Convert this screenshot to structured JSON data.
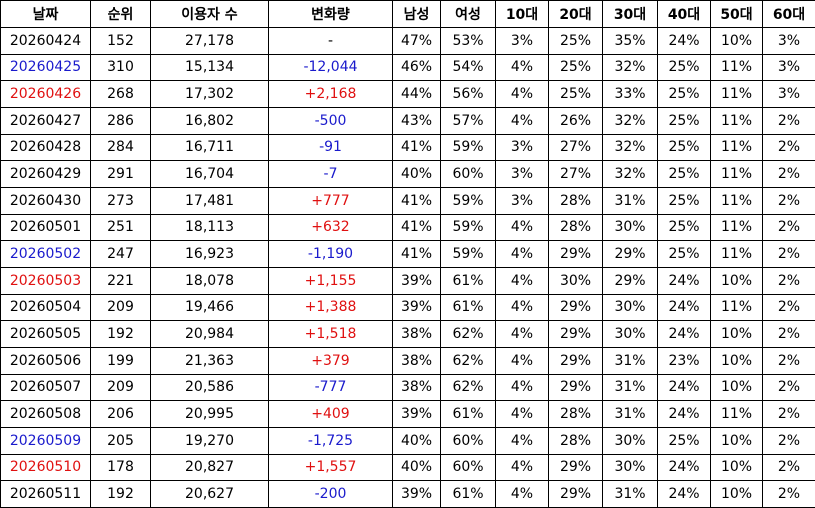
{
  "table": {
    "header": [
      "날짜",
      "순위",
      "이용자 수",
      "변화량",
      "남성",
      "여성",
      "10대",
      "20대",
      "30대",
      "40대",
      "50대",
      "60대"
    ],
    "rows": [
      [
        "20260424",
        "152",
        "27,178",
        "-",
        "47%",
        "53%",
        "3%",
        "25%",
        "35%",
        "24%",
        "10%",
        "3%"
      ],
      [
        "20260425",
        "310",
        "15,134",
        "-12,044",
        "46%",
        "54%",
        "4%",
        "25%",
        "32%",
        "25%",
        "11%",
        "3%"
      ],
      [
        "20260426",
        "268",
        "17,302",
        "+2,168",
        "44%",
        "56%",
        "4%",
        "25%",
        "33%",
        "25%",
        "11%",
        "3%"
      ],
      [
        "20260427",
        "286",
        "16,802",
        "-500",
        "43%",
        "57%",
        "4%",
        "26%",
        "32%",
        "25%",
        "11%",
        "2%"
      ],
      [
        "20260428",
        "284",
        "16,711",
        "-91",
        "41%",
        "59%",
        "3%",
        "27%",
        "32%",
        "25%",
        "11%",
        "2%"
      ],
      [
        "20260429",
        "291",
        "16,704",
        "-7",
        "40%",
        "60%",
        "3%",
        "27%",
        "32%",
        "25%",
        "11%",
        "2%"
      ],
      [
        "20260430",
        "273",
        "17,481",
        "+777",
        "41%",
        "59%",
        "3%",
        "28%",
        "31%",
        "25%",
        "11%",
        "2%"
      ],
      [
        "20260501",
        "251",
        "18,113",
        "+632",
        "41%",
        "59%",
        "4%",
        "28%",
        "30%",
        "25%",
        "11%",
        "2%"
      ],
      [
        "20260502",
        "247",
        "16,923",
        "-1,190",
        "41%",
        "59%",
        "4%",
        "29%",
        "29%",
        "25%",
        "11%",
        "2%"
      ],
      [
        "20260503",
        "221",
        "18,078",
        "+1,155",
        "39%",
        "61%",
        "4%",
        "30%",
        "29%",
        "24%",
        "10%",
        "2%"
      ],
      [
        "20260504",
        "209",
        "19,466",
        "+1,388",
        "39%",
        "61%",
        "4%",
        "29%",
        "30%",
        "24%",
        "11%",
        "2%"
      ],
      [
        "20260505",
        "192",
        "20,984",
        "+1,518",
        "38%",
        "62%",
        "4%",
        "29%",
        "30%",
        "24%",
        "10%",
        "2%"
      ],
      [
        "20260506",
        "199",
        "21,363",
        "+379",
        "38%",
        "62%",
        "4%",
        "29%",
        "31%",
        "23%",
        "10%",
        "2%"
      ],
      [
        "20260507",
        "209",
        "20,586",
        "-777",
        "38%",
        "62%",
        "4%",
        "29%",
        "31%",
        "24%",
        "10%",
        "2%"
      ],
      [
        "20260508",
        "206",
        "20,995",
        "+409",
        "39%",
        "61%",
        "4%",
        "28%",
        "31%",
        "24%",
        "11%",
        "2%"
      ],
      [
        "20260509",
        "205",
        "19,270",
        "-1,725",
        "40%",
        "60%",
        "4%",
        "28%",
        "30%",
        "25%",
        "10%",
        "2%"
      ],
      [
        "20260510",
        "178",
        "20,827",
        "+1,557",
        "40%",
        "60%",
        "4%",
        "29%",
        "30%",
        "24%",
        "10%",
        "2%"
      ],
      [
        "20260511",
        "192",
        "20,627",
        "-200",
        "39%",
        "61%",
        "4%",
        "29%",
        "31%",
        "24%",
        "10%",
        "2%"
      ]
    ],
    "date_colors": [
      "#000000",
      "#1a1acc",
      "#e01010",
      "#000000",
      "#000000",
      "#000000",
      "#000000",
      "#000000",
      "#1a1acc",
      "#e01010",
      "#000000",
      "#000000",
      "#000000",
      "#000000",
      "#000000",
      "#1a1acc",
      "#e01010",
      "#000000"
    ],
    "change_colors": {
      "up": "#e01010",
      "down": "#1a1acc"
    }
  }
}
